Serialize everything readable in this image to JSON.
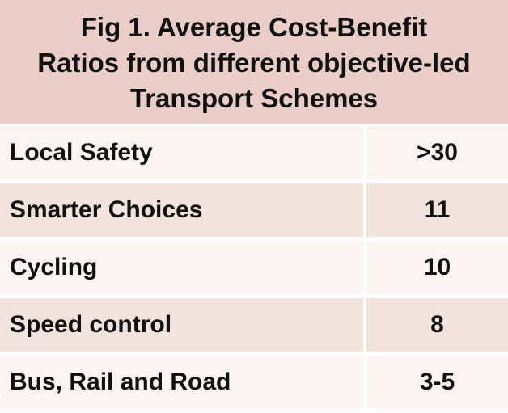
{
  "figure": {
    "title_lines": [
      "Fig 1. Average Cost-Benefit",
      "Ratios from different objective-led",
      "Transport Schemes"
    ],
    "rows": [
      {
        "label": "Local Safety",
        "value": ">30"
      },
      {
        "label": "Smarter Choices",
        "value": "11"
      },
      {
        "label": "Cycling",
        "value": "10"
      },
      {
        "label": "Speed control",
        "value": "8"
      },
      {
        "label": "Bus, Rail and Road",
        "value": "3-5"
      }
    ]
  },
  "colors": {
    "header_bg": "#e9cdc6",
    "row_light": "#faf4f2",
    "row_dark": "#f3e3df",
    "text": "#111111"
  }
}
